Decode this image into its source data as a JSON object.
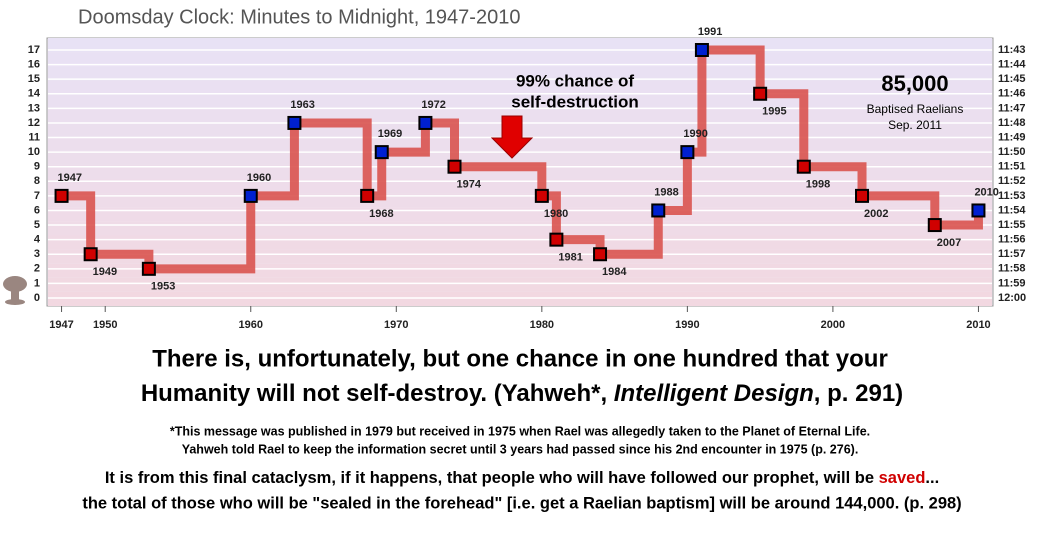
{
  "chart_data": {
    "type": "step",
    "title": "Doomsday Clock: Minutes to Midnight, 1947-2010",
    "x": [
      1947,
      1949,
      1953,
      1960,
      1963,
      1968,
      1969,
      1972,
      1974,
      1980,
      1981,
      1984,
      1988,
      1990,
      1991,
      1995,
      1998,
      2002,
      2007,
      2010
    ],
    "series": [
      {
        "color": "#d9534f",
        "values": [
          7,
          3,
          2,
          7,
          12,
          7,
          10,
          12,
          9,
          7,
          4,
          3,
          6,
          10,
          17,
          14,
          9,
          7,
          5,
          6
        ],
        "marker_colors": [
          "#d00000",
          "#d00000",
          "#d00000",
          "#0020d0",
          "#0020d0",
          "#d00000",
          "#0020d0",
          "#0020d0",
          "#d00000",
          "#d00000",
          "#d00000",
          "#d00000",
          "#0020d0",
          "#0020d0",
          "#0020d0",
          "#d00000",
          "#d00000",
          "#d00000",
          "#d00000",
          "#0020d0"
        ]
      }
    ],
    "xlim": [
      1946,
      2011
    ],
    "xticks": [
      1947,
      1950,
      1960,
      1970,
      1980,
      1990,
      2000,
      2010
    ],
    "ylim": [
      0,
      17
    ],
    "yticks": [
      0,
      1,
      2,
      3,
      4,
      5,
      6,
      7,
      8,
      9,
      10,
      11,
      12,
      13,
      14,
      15,
      16,
      17
    ],
    "y2lim": [
      0,
      17
    ],
    "y2ticks": [
      {
        "value": 0,
        "label": "12:00"
      },
      {
        "value": 1,
        "label": "11:59"
      },
      {
        "value": 2,
        "label": "11:58"
      },
      {
        "value": 3,
        "label": "11:57"
      },
      {
        "value": 4,
        "label": "11:56"
      },
      {
        "value": 5,
        "label": "11:55"
      },
      {
        "value": 6,
        "label": "11:54"
      },
      {
        "value": 7,
        "label": "11:53"
      },
      {
        "value": 8,
        "label": "11:52"
      },
      {
        "value": 9,
        "label": "11:51"
      },
      {
        "value": 10,
        "label": "11:50"
      },
      {
        "value": 11,
        "label": "11:49"
      },
      {
        "value": 12,
        "label": "11:48"
      },
      {
        "value": 13,
        "label": "11:47"
      },
      {
        "value": 14,
        "label": "11:46"
      },
      {
        "value": 15,
        "label": "11:45"
      },
      {
        "value": 16,
        "label": "11:44"
      },
      {
        "value": 17,
        "label": "11:43"
      }
    ],
    "grid": true,
    "annotation": [
      "99% chance of",
      "self-destruction"
    ],
    "callout": {
      "number": "85,000",
      "lines": [
        "Baptised Raelians",
        "Sep. 2011"
      ]
    }
  },
  "quote": {
    "line1": "There is, unfortunately, but one chance in one hundred that your",
    "line2_before": "Humanity will not self-destroy. (Yahweh*, ",
    "line2_italic": "Intelligent Design",
    "line2_after": ", p. 291)"
  },
  "footnote": [
    "*This message was published in 1979 but received in 1975 when Rael was allegedly taken to the Planet of Eternal Life.",
    "Yahweh told Rael to keep the information secret until 3 years had passed since his 2nd encounter in 1975 (p. 276)."
  ],
  "closing": {
    "line1_before": "It is from this final cataclysm, if it happens, that people who will have followed our prophet, will be ",
    "line1_red": "saved",
    "line1_after": "...",
    "line2": "the total of those who will be \"sealed in the forehead\" [i.e. get a Raelian baptism] will be around 144,000. (p. 298)"
  }
}
